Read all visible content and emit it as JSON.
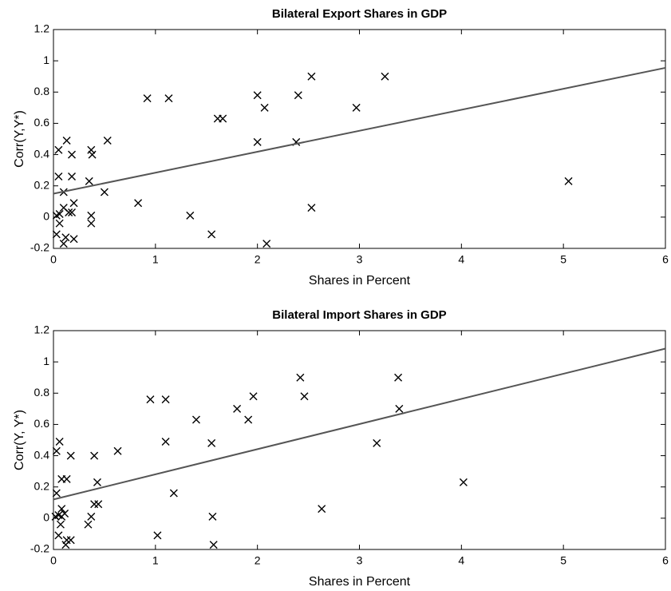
{
  "chart_data": [
    {
      "type": "scatter",
      "title": "Bilateral Export Shares in GDP",
      "xlabel": "Shares in Percent",
      "ylabel": "Corr(Y,Y*)",
      "xlim": [
        0,
        6
      ],
      "ylim": [
        -0.2,
        1.2
      ],
      "xticks": [
        0,
        1,
        2,
        3,
        4,
        5,
        6
      ],
      "yticks": [
        -0.2,
        0,
        0.2,
        0.4,
        0.6,
        0.8,
        1,
        1.2
      ],
      "series": [
        {
          "type": "scatter",
          "color": "#000000",
          "x": [
            0.05,
            0.13,
            0.18,
            0.05,
            0.18,
            0.1,
            0.2,
            0.1,
            0.15,
            0.06,
            0.03,
            0.18,
            0.06,
            0.03,
            0.12,
            0.2,
            0.1,
            0.35,
            0.37,
            0.38,
            0.37,
            0.37,
            0.5,
            0.53,
            0.83,
            0.92,
            1.13,
            1.34,
            1.55,
            1.61,
            1.66,
            2.0,
            2.07,
            2.0,
            2.09,
            2.4,
            2.38,
            2.53,
            2.53,
            2.97,
            3.25,
            5.05
          ],
          "y": [
            0.43,
            0.49,
            0.4,
            0.26,
            0.26,
            0.16,
            0.09,
            0.06,
            0.03,
            0.02,
            0.01,
            0.03,
            -0.04,
            -0.11,
            -0.13,
            -0.14,
            -0.17,
            0.23,
            0.43,
            0.4,
            0.01,
            -0.04,
            0.16,
            0.49,
            0.09,
            0.76,
            0.76,
            0.01,
            -0.11,
            0.63,
            0.63,
            0.78,
            0.7,
            0.48,
            -0.17,
            0.78,
            0.48,
            0.9,
            0.06,
            0.7,
            0.9,
            0.23
          ]
        },
        {
          "type": "line",
          "color": "#555555",
          "x": [
            0,
            6
          ],
          "y": [
            0.15,
            0.955
          ]
        }
      ]
    },
    {
      "type": "scatter",
      "title": "Bilateral Import Shares in GDP",
      "xlabel": "Shares in Percent",
      "ylabel": "Corr(Y, Y*)",
      "xlim": [
        0,
        6
      ],
      "ylim": [
        -0.2,
        1.2
      ],
      "xticks": [
        0,
        1,
        2,
        3,
        4,
        5,
        6
      ],
      "yticks": [
        -0.2,
        0,
        0.2,
        0.4,
        0.6,
        0.8,
        1,
        1.2
      ],
      "series": [
        {
          "type": "scatter",
          "color": "#000000",
          "x": [
            0.03,
            0.06,
            0.03,
            0.08,
            0.13,
            0.17,
            0.4,
            0.43,
            0.4,
            0.44,
            0.63,
            0.08,
            0.11,
            0.05,
            0.02,
            0.08,
            0.07,
            0.05,
            0.13,
            0.17,
            0.12,
            0.34,
            0.37,
            0.95,
            1.1,
            1.1,
            1.02,
            1.18,
            1.4,
            1.55,
            1.56,
            1.57,
            1.8,
            1.91,
            1.96,
            2.42,
            2.46,
            2.63,
            3.17,
            3.38,
            3.39,
            4.02
          ],
          "y": [
            0.43,
            0.49,
            0.16,
            0.25,
            0.25,
            0.4,
            0.4,
            0.23,
            0.09,
            0.09,
            0.43,
            0.06,
            0.03,
            0.02,
            0.01,
            0.01,
            -0.04,
            -0.11,
            -0.14,
            -0.14,
            -0.17,
            -0.04,
            0.01,
            0.76,
            0.76,
            0.49,
            -0.11,
            0.16,
            0.63,
            0.48,
            0.01,
            -0.17,
            0.7,
            0.63,
            0.78,
            0.9,
            0.78,
            0.06,
            0.48,
            0.9,
            0.7,
            0.23
          ]
        },
        {
          "type": "line",
          "color": "#555555",
          "x": [
            0,
            6
          ],
          "y": [
            0.12,
            1.085
          ]
        }
      ]
    }
  ]
}
